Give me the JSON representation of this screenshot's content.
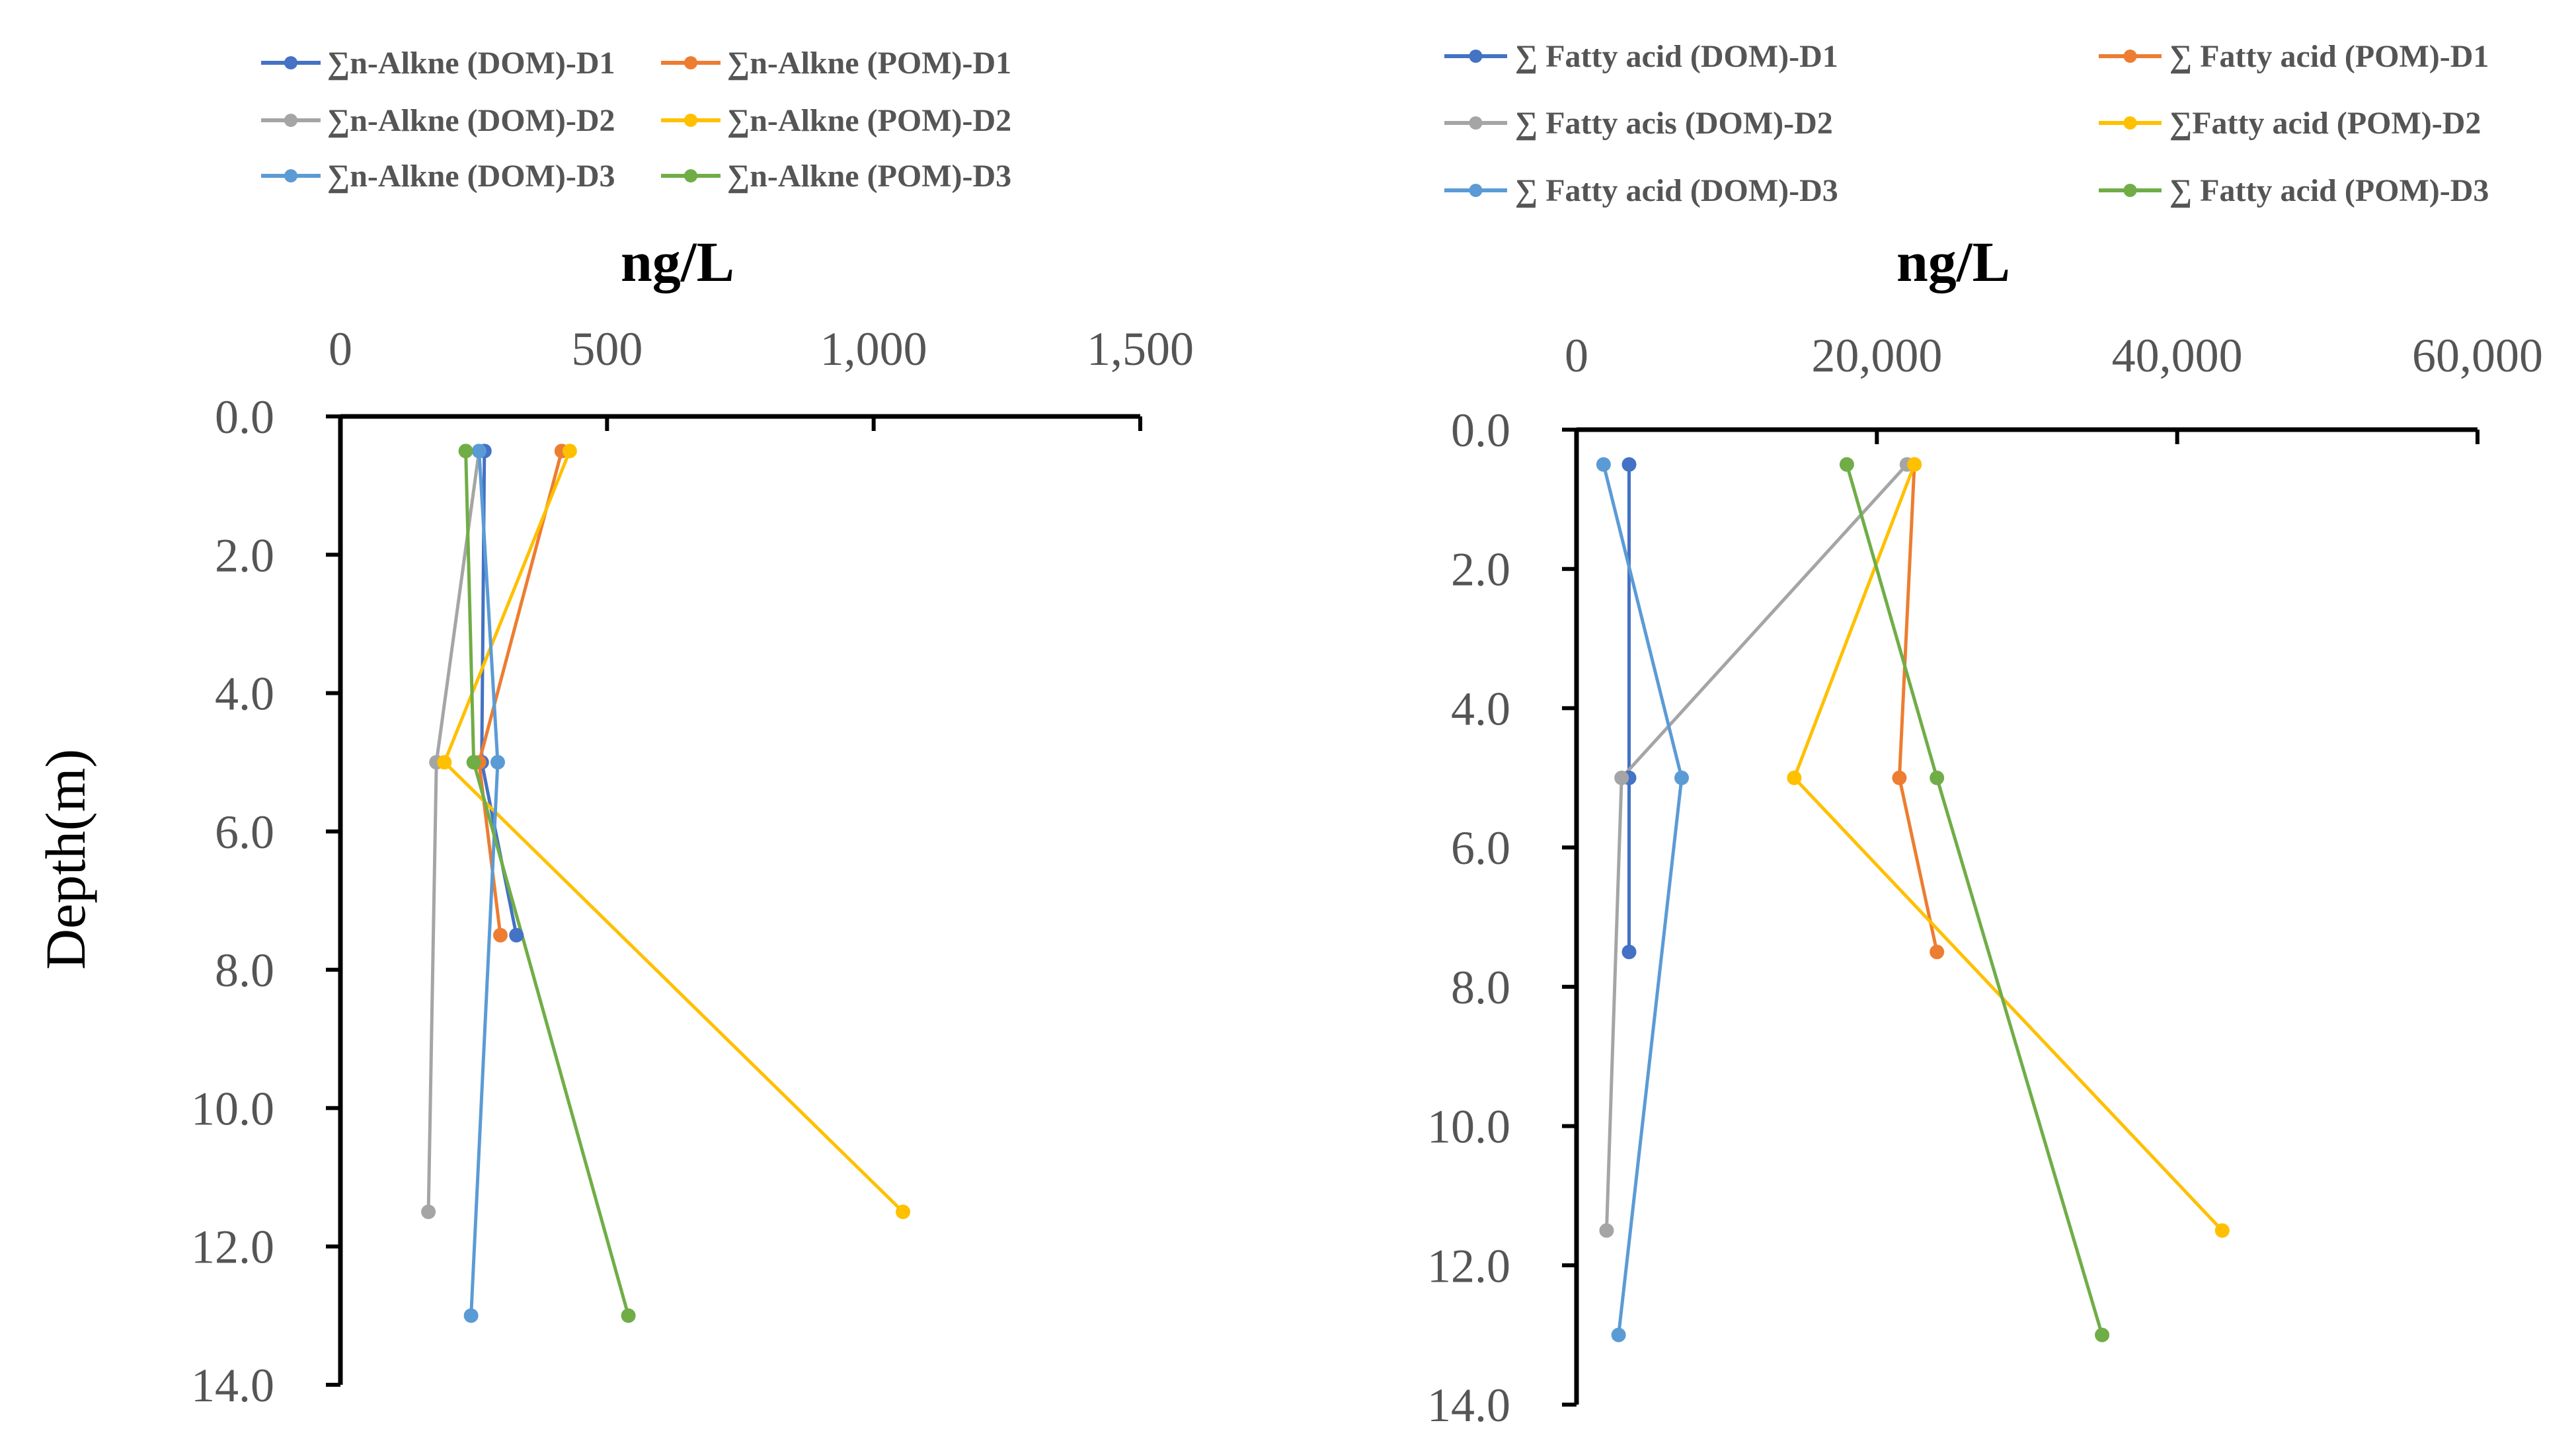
{
  "chart_data": [
    {
      "type": "line",
      "title": "",
      "xlabel": "ng/L",
      "ylabel": "Depth(m)",
      "xlim": [
        0,
        1500
      ],
      "ylim": [
        14,
        0
      ],
      "x_axis_position": "top",
      "y_inverted": true,
      "xtick_labels": [
        "0",
        "500",
        "1,000",
        "1,500"
      ],
      "xtick_values": [
        0,
        500,
        1000,
        1500
      ],
      "ytick_labels": [
        "0.0",
        "2.0",
        "4.0",
        "6.0",
        "8.0",
        "10.0",
        "12.0",
        "14.0"
      ],
      "ytick_values": [
        0,
        2,
        4,
        6,
        8,
        10,
        12,
        14
      ],
      "legend_position": "top",
      "series": [
        {
          "name": "∑n-Alkne (DOM)-D1",
          "color": "#4472C4",
          "points": [
            [
              270,
              0.5
            ],
            [
              265,
              5.0
            ],
            [
              330,
              7.5
            ]
          ]
        },
        {
          "name": "∑n-Alkne (POM)-D1",
          "color": "#ED7D31",
          "points": [
            [
              415,
              0.5
            ],
            [
              260,
              5.0
            ],
            [
              300,
              7.5
            ]
          ]
        },
        {
          "name": "∑n-Alkne (DOM)-D2",
          "color": "#A5A5A5",
          "points": [
            [
              260,
              0.5
            ],
            [
              180,
              5.0
            ],
            [
              165,
              11.5
            ]
          ]
        },
        {
          "name": "∑n-Alkne (POM)-D2",
          "color": "#FFC000",
          "points": [
            [
              430,
              0.5
            ],
            [
              195,
              5.0
            ],
            [
              1055,
              11.5
            ]
          ]
        },
        {
          "name": "∑n-Alkne (DOM)-D3",
          "color": "#5B9BD5",
          "points": [
            [
              260,
              0.5
            ],
            [
              295,
              5.0
            ],
            [
              245,
              13.0
            ]
          ]
        },
        {
          "name": "∑n-Alkne (POM)-D3",
          "color": "#70AD47",
          "points": [
            [
              235,
              0.5
            ],
            [
              250,
              5.0
            ],
            [
              540,
              13.0
            ]
          ]
        }
      ]
    },
    {
      "type": "line",
      "title": "",
      "xlabel": "ng/L",
      "ylabel": "",
      "xlim": [
        0,
        60000
      ],
      "ylim": [
        14,
        0
      ],
      "x_axis_position": "top",
      "y_inverted": true,
      "xtick_labels": [
        "0",
        "20,000",
        "40,000",
        "60,000"
      ],
      "xtick_values": [
        0,
        20000,
        40000,
        60000
      ],
      "ytick_labels": [
        "0.0",
        "2.0",
        "4.0",
        "6.0",
        "8.0",
        "10.0",
        "12.0",
        "14.0"
      ],
      "ytick_values": [
        0,
        2,
        4,
        6,
        8,
        10,
        12,
        14
      ],
      "legend_position": "top",
      "series": [
        {
          "name": "∑ Fatty acid (DOM)-D1",
          "color": "#4472C4",
          "points": [
            [
              3500,
              0.5
            ],
            [
              3500,
              5.0
            ],
            [
              3500,
              7.5
            ]
          ]
        },
        {
          "name": "∑ Fatty acid (POM)-D1",
          "color": "#ED7D31",
          "points": [
            [
              22500,
              0.5
            ],
            [
              21500,
              5.0
            ],
            [
              24000,
              7.5
            ]
          ]
        },
        {
          "name": "∑ Fatty acis (DOM)-D2",
          "color": "#A5A5A5",
          "points": [
            [
              22000,
              0.5
            ],
            [
              3000,
              5.0
            ],
            [
              2000,
              11.5
            ]
          ]
        },
        {
          "name": "∑Fatty acid (POM)-D2",
          "color": "#FFC000",
          "points": [
            [
              22500,
              0.5
            ],
            [
              14500,
              5.0
            ],
            [
              43000,
              11.5
            ]
          ]
        },
        {
          "name": "∑ Fatty acid (DOM)-D3",
          "color": "#5B9BD5",
          "points": [
            [
              1800,
              0.5
            ],
            [
              7000,
              5.0
            ],
            [
              2800,
              13.0
            ]
          ]
        },
        {
          "name": "∑ Fatty acid (POM)-D3",
          "color": "#70AD47",
          "points": [
            [
              18000,
              0.5
            ],
            [
              24000,
              5.0
            ],
            [
              35000,
              13.0
            ]
          ]
        }
      ]
    }
  ]
}
